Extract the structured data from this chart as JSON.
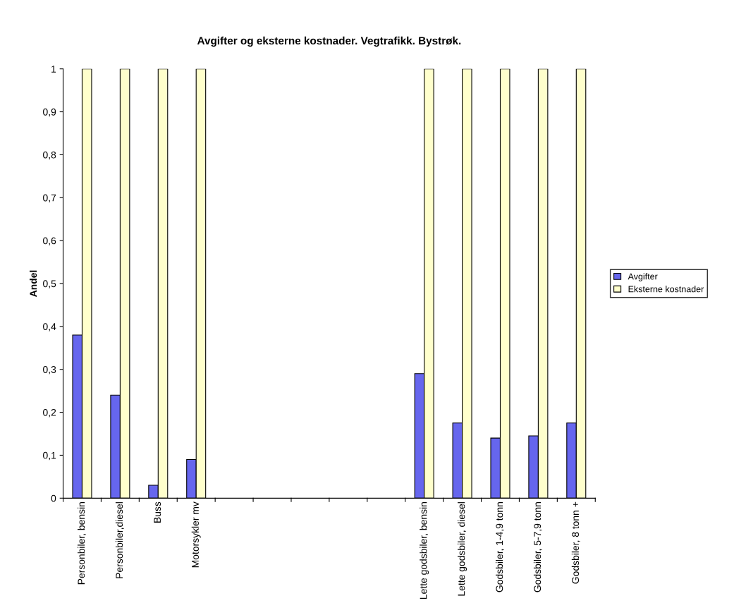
{
  "chart_data": {
    "type": "bar",
    "title": "Avgifter og eksterne kostnader. Vegtrafikk. Bystrøk.",
    "ylabel": "Andel",
    "categories": [
      "Personbiler, bensin",
      "Personbiler,diesel",
      "Buss",
      "Motorsykler mv",
      null,
      null,
      null,
      null,
      null,
      "Lette godsbiler, bensin",
      "Lette godsbiler, diesel",
      "Godsbiler, 1-4,9 tonn",
      "Godsbiler, 5-7,9 tonn",
      "Godsbiler, 8 tonn +"
    ],
    "series": [
      {
        "name": "Avgifter",
        "color": "#6666ee",
        "values": [
          0.38,
          0.24,
          0.03,
          0.09,
          null,
          null,
          null,
          null,
          null,
          0.29,
          0.175,
          0.14,
          0.145,
          0.175
        ]
      },
      {
        "name": "Eksterne kostnader",
        "color": "#ffffcc",
        "values": [
          1,
          1,
          1,
          1,
          null,
          null,
          null,
          null,
          null,
          1,
          1,
          1,
          1,
          1
        ]
      }
    ],
    "ylim": [
      0,
      1
    ],
    "yticks": [
      0,
      {
        "value": 0.1,
        "label": "0,1"
      },
      {
        "value": 0.2,
        "label": "0,2"
      },
      {
        "value": 0.3,
        "label": "0,3"
      },
      {
        "value": 0.4,
        "label": "0,4"
      },
      {
        "value": 0.5,
        "label": "0,5"
      },
      {
        "value": 0.6,
        "label": "0,6"
      },
      {
        "value": 0.7,
        "label": "0,7"
      },
      {
        "value": 0.8,
        "label": "0,8"
      },
      {
        "value": 0.9,
        "label": "0,9"
      },
      1
    ],
    "grid": false,
    "legend": "right"
  }
}
